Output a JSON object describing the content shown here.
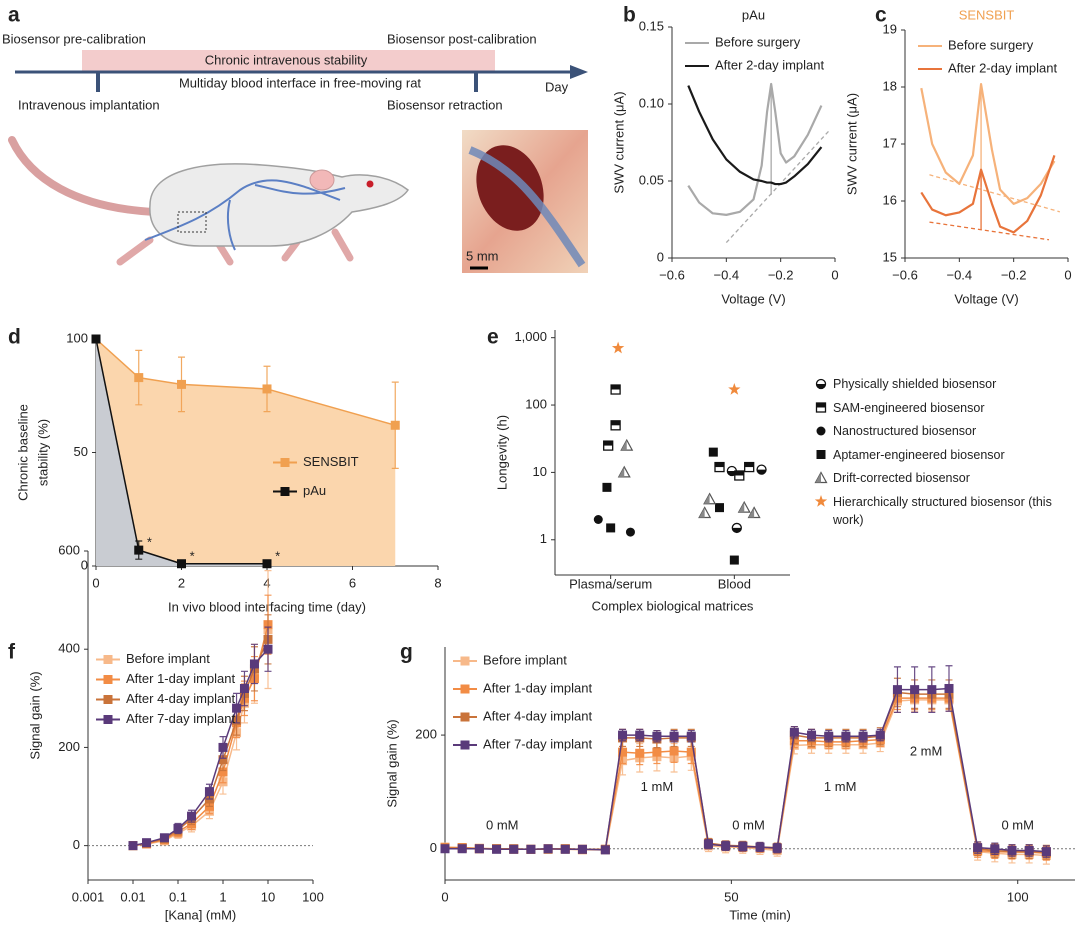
{
  "panel_a": {
    "label": "a",
    "timeline": {
      "start_label": "Biosensor pre-calibration",
      "band_label": "Chronic intravenous stability",
      "end_label": "Biosensor post-calibration",
      "caption": "Multiday blood interface in free-moving rat",
      "axis_label": "Day",
      "implant_label": "Intravenous implantation",
      "retraction_label": "Biosensor retraction"
    },
    "scale_bar": "5 mm"
  },
  "chart_data": [
    {
      "type": "line",
      "panel": "b",
      "title": "pAu",
      "title_color": "#222222",
      "xlabel": "Voltage (V)",
      "ylabel": "SWV current (μA)",
      "xlim": [
        -0.6,
        0
      ],
      "xticks": [
        {
          "value": -0.6,
          "label": "−0.6"
        },
        {
          "value": -0.4,
          "label": "−0.4"
        },
        {
          "value": -0.2,
          "label": "−0.2"
        },
        0
      ],
      "ylim": [
        0,
        0.15
      ],
      "yticks": [
        0,
        0.05,
        {
          "value": 0.1,
          "label": "0.10"
        },
        0.15
      ],
      "legend": "upper right",
      "x": [
        -0.54,
        -0.5,
        -0.45,
        -0.4,
        -0.35,
        -0.3,
        -0.27,
        -0.25,
        -0.235,
        -0.22,
        -0.2,
        -0.18,
        -0.15,
        -0.1,
        -0.05
      ],
      "series": [
        {
          "name": "Before surgery",
          "color": "#a9a9a9",
          "values": [
            0.047,
            0.036,
            0.029,
            0.028,
            0.03,
            0.038,
            0.06,
            0.095,
            0.113,
            0.095,
            0.068,
            0.062,
            0.066,
            0.08,
            0.099
          ]
        },
        {
          "name": "After 2-day implant",
          "color": "#1a1a1a",
          "values": [
            0.112,
            0.095,
            0.077,
            0.064,
            0.056,
            0.051,
            0.05,
            0.049,
            0.049,
            0.048,
            0.048,
            0.049,
            0.053,
            0.061,
            0.072
          ]
        }
      ],
      "reference_lines": [
        {
          "x": [
            -0.4,
            -0.02
          ],
          "values": [
            0.01,
            0.083
          ],
          "color": "#a9a9a9",
          "dashed": true
        },
        {
          "x": [
            -0.235,
            -0.235
          ],
          "values": [
            0.113,
            0.041
          ],
          "color": "#a9a9a9",
          "dashed": false
        }
      ]
    },
    {
      "type": "line",
      "panel": "c",
      "title": "SENSBIT",
      "title_color": "#f0a050",
      "xlabel": "Voltage (V)",
      "ylabel": "SWV current (μA)",
      "xlim": [
        -0.6,
        0
      ],
      "xticks": [
        {
          "value": -0.6,
          "label": "−0.6"
        },
        {
          "value": -0.4,
          "label": "−0.4"
        },
        {
          "value": -0.2,
          "label": "−0.2"
        },
        0
      ],
      "ylim": [
        15,
        19
      ],
      "yticks": [
        15,
        16,
        17,
        18,
        19
      ],
      "legend": "upper right",
      "x": [
        -0.54,
        -0.5,
        -0.45,
        -0.4,
        -0.35,
        -0.32,
        -0.28,
        -0.25,
        -0.2,
        -0.15,
        -0.1,
        -0.05
      ],
      "series": [
        {
          "name": "Before surgery",
          "color": "#f6b27a",
          "values": [
            17.98,
            17.0,
            16.5,
            16.3,
            16.8,
            18.05,
            16.9,
            16.2,
            15.95,
            16.05,
            16.3,
            16.7
          ]
        },
        {
          "name": "After 2-day implant",
          "color": "#e8743b",
          "values": [
            16.15,
            15.85,
            15.75,
            15.8,
            15.95,
            16.55,
            15.95,
            15.55,
            15.45,
            15.65,
            16.1,
            16.8
          ]
        }
      ],
      "reference_lines": [
        {
          "x": [
            -0.51,
            -0.03
          ],
          "values": [
            16.46,
            15.81
          ],
          "color": "#f6b27a",
          "dashed": true
        },
        {
          "x": [
            -0.51,
            -0.07
          ],
          "values": [
            15.63,
            15.32
          ],
          "color": "#e8743b",
          "dashed": true
        },
        {
          "x": [
            -0.32,
            -0.32
          ],
          "values": [
            18.0,
            16.25
          ],
          "color": "#f6b27a",
          "dashed": false
        },
        {
          "x": [
            -0.32,
            -0.32
          ],
          "values": [
            16.5,
            15.5
          ],
          "color": "#e8743b",
          "dashed": false
        }
      ]
    },
    {
      "type": "area",
      "panel": "d",
      "xlabel": "In vivo blood interfacing time (day)",
      "ylabel": [
        "Chronic baseline",
        "stability (%)"
      ],
      "xlim": [
        0,
        8
      ],
      "xticks": [
        0,
        2,
        4,
        6,
        8
      ],
      "ylim": [
        0,
        100
      ],
      "yticks": [
        0,
        50,
        100
      ],
      "legend": "center right",
      "marker": "square",
      "series": [
        {
          "name": "SENSBIT",
          "color": "#f0a050",
          "fill": "#fbd6ad",
          "x": [
            0,
            1,
            2,
            4,
            7
          ],
          "values": [
            100,
            83,
            80,
            78,
            62
          ],
          "errors": [
            0,
            12,
            12,
            10,
            19
          ]
        },
        {
          "name": "pAu",
          "color": "#111111",
          "fill": "#c9ccd2",
          "x": [
            0,
            1,
            2,
            4
          ],
          "values": [
            100,
            7,
            1,
            1
          ],
          "errors": [
            0,
            4,
            0,
            0
          ]
        }
      ],
      "annotations": [
        {
          "text": "*",
          "x": 1.25,
          "y": 10
        },
        {
          "text": "*",
          "x": 2.25,
          "y": 4
        },
        {
          "text": "*",
          "x": 4.25,
          "y": 4
        }
      ]
    },
    {
      "type": "scatter",
      "panel": "e",
      "xlabel": "Complex biological matrices",
      "ylabel": "Longevity (h)",
      "yscale": "log",
      "xlim": [
        -0.45,
        1.45
      ],
      "xticks": [
        {
          "value": 0,
          "label": "Plasma/serum"
        },
        {
          "value": 1,
          "label": "Blood"
        }
      ],
      "ylim": [
        0.3,
        1300
      ],
      "yticks": [
        1,
        10,
        100,
        {
          "value": 1000,
          "label": "1,000"
        }
      ],
      "legend": "outside right",
      "series": [
        {
          "name": "Physically shielded biosensor",
          "marker": "half-circle",
          "color": "#111111",
          "x": [
            0.98,
            1.02,
            1.22
          ],
          "values": [
            10.5,
            1.5,
            11
          ]
        },
        {
          "name": "SAM-engineered biosensor",
          "marker": "half-square",
          "color": "#111111",
          "x": [
            0.04,
            0.04,
            -0.02,
            0.88,
            1.12,
            1.04
          ],
          "values": [
            170,
            50,
            25,
            12,
            12,
            9
          ]
        },
        {
          "name": "Nanostructured biosensor",
          "marker": "circle",
          "color": "#111111",
          "x": [
            -0.1,
            0.16
          ],
          "values": [
            2,
            1.3
          ]
        },
        {
          "name": "Aptamer-engineered biosensor",
          "marker": "square",
          "color": "#111111",
          "x": [
            -0.03,
            0,
            0.83,
            0.88,
            1.0
          ],
          "values": [
            6,
            1.5,
            20,
            3,
            0.5
          ]
        },
        {
          "name": "Drift-corrected biosensor",
          "marker": "triangle",
          "color": "#888888",
          "x": [
            0.13,
            0.11,
            0.8,
            0.76,
            1.08,
            1.16
          ],
          "values": [
            25,
            10,
            4,
            2.5,
            3,
            2.5
          ]
        },
        {
          "name": "Hierarchically structured biosensor (this work)",
          "marker": "star",
          "color": "#f08a3c",
          "x": [
            0.06,
            1.0
          ],
          "values": [
            700,
            170
          ]
        }
      ]
    },
    {
      "type": "line",
      "panel": "f",
      "xlabel": "[Kana] (mM)",
      "ylabel": "Signal gain (%)",
      "xscale": "log",
      "xlim": [
        0.001,
        100
      ],
      "xticks": [
        0.001,
        0.01,
        0.1,
        1,
        10,
        100
      ],
      "ylim": [
        -70,
        600
      ],
      "yticks": [
        0,
        200,
        400,
        600
      ],
      "legend": "center left",
      "marker": "square",
      "zero_line": true,
      "x": [
        0.01,
        0.02,
        0.05,
        0.1,
        0.2,
        0.5,
        1,
        2,
        3,
        5,
        10
      ],
      "series": [
        {
          "name": "Before implant",
          "color": "#f7b98a",
          "values": [
            0,
            3,
            10,
            25,
            40,
            70,
            130,
            230,
            290,
            350,
            440
          ],
          "errors": [
            5,
            5,
            8,
            10,
            12,
            15,
            25,
            35,
            40,
            60,
            120
          ]
        },
        {
          "name": "After 1-day implant",
          "color": "#f28c45",
          "values": [
            0,
            4,
            12,
            28,
            45,
            80,
            150,
            250,
            300,
            340,
            450
          ],
          "errors": [
            4,
            5,
            7,
            10,
            12,
            15,
            22,
            30,
            35,
            45,
            60
          ]
        },
        {
          "name": "After 4-day implant",
          "color": "#c9733a",
          "values": [
            0,
            5,
            14,
            32,
            55,
            95,
            175,
            255,
            310,
            360,
            420
          ],
          "errors": [
            4,
            5,
            7,
            10,
            12,
            15,
            22,
            30,
            35,
            45,
            50
          ]
        },
        {
          "name": "After 7-day implant",
          "color": "#5a3a7a",
          "values": [
            0,
            6,
            16,
            35,
            60,
            110,
            200,
            280,
            320,
            370,
            400
          ],
          "errors": [
            4,
            5,
            7,
            10,
            12,
            15,
            22,
            30,
            35,
            40,
            45
          ]
        }
      ]
    },
    {
      "type": "line",
      "panel": "g",
      "xlabel": "Time (min)",
      "ylabel": "Signal gain (%)",
      "xlim": [
        0,
        110
      ],
      "xticks": [
        0,
        50,
        100
      ],
      "ylim": [
        -55,
        355
      ],
      "yticks": [
        0,
        200
      ],
      "legend": "upper left",
      "marker": "square",
      "zero_line": true,
      "x": [
        0,
        3,
        6,
        9,
        12,
        15,
        18,
        21,
        24,
        28,
        31,
        34,
        37,
        40,
        43,
        46,
        49,
        52,
        55,
        58,
        61,
        64,
        67,
        70,
        73,
        76,
        79,
        82,
        85,
        88,
        93,
        96,
        99,
        102,
        105
      ],
      "series": [
        {
          "name": "Before implant",
          "color": "#f7b98a",
          "values": [
            3,
            2,
            1,
            0,
            0,
            -1,
            0,
            -1,
            -2,
            -2,
            155,
            160,
            162,
            160,
            163,
            5,
            3,
            2,
            0,
            -3,
            182,
            183,
            183,
            183,
            183,
            186,
            260,
            262,
            262,
            262,
            -5,
            -8,
            -10,
            -10,
            -12
          ],
          "errors": [
            5,
            5,
            5,
            5,
            5,
            5,
            5,
            5,
            5,
            5,
            25,
            25,
            25,
            25,
            25,
            10,
            10,
            10,
            10,
            10,
            15,
            15,
            15,
            15,
            15,
            15,
            20,
            20,
            20,
            20,
            15,
            15,
            15,
            15,
            15
          ]
        },
        {
          "name": "After 1-day implant",
          "color": "#f28c45",
          "values": [
            2,
            2,
            0,
            0,
            -1,
            -1,
            0,
            0,
            -1,
            -1,
            170,
            168,
            170,
            172,
            170,
            8,
            5,
            3,
            2,
            0,
            190,
            190,
            188,
            188,
            190,
            192,
            265,
            265,
            265,
            265,
            -3,
            -5,
            -6,
            -6,
            -8
          ],
          "errors": [
            4,
            4,
            4,
            4,
            4,
            4,
            4,
            4,
            4,
            4,
            20,
            20,
            20,
            20,
            20,
            8,
            8,
            8,
            8,
            8,
            12,
            12,
            12,
            12,
            12,
            12,
            20,
            20,
            20,
            20,
            12,
            12,
            12,
            12,
            12
          ]
        },
        {
          "name": "After 4-day implant",
          "color": "#c9733a",
          "values": [
            1,
            1,
            0,
            0,
            0,
            -1,
            -1,
            0,
            -1,
            -1,
            195,
            195,
            193,
            195,
            195,
            10,
            6,
            5,
            3,
            2,
            200,
            195,
            195,
            195,
            195,
            198,
            275,
            272,
            272,
            272,
            0,
            -3,
            -5,
            -5,
            -6
          ],
          "errors": [
            3,
            3,
            3,
            3,
            3,
            3,
            3,
            3,
            3,
            3,
            15,
            15,
            15,
            15,
            15,
            8,
            8,
            8,
            8,
            8,
            15,
            15,
            15,
            15,
            15,
            15,
            25,
            25,
            25,
            25,
            12,
            12,
            12,
            12,
            12
          ]
        },
        {
          "name": "After 7-day implant",
          "color": "#5a3a7a",
          "values": [
            0,
            0,
            0,
            -1,
            -1,
            -1,
            0,
            -1,
            -1,
            -2,
            200,
            200,
            198,
            198,
            198,
            8,
            5,
            4,
            3,
            1,
            205,
            200,
            198,
            198,
            198,
            200,
            280,
            280,
            280,
            282,
            2,
            0,
            -3,
            -3,
            -5
          ],
          "errors": [
            3,
            3,
            3,
            3,
            3,
            3,
            3,
            3,
            3,
            3,
            10,
            10,
            10,
            10,
            10,
            8,
            8,
            8,
            8,
            8,
            10,
            10,
            10,
            10,
            10,
            10,
            40,
            40,
            40,
            40,
            10,
            10,
            10,
            10,
            10
          ]
        }
      ],
      "annotations": [
        {
          "text": "0 mM",
          "x": 10,
          "y": 40
        },
        {
          "text": "1 mM",
          "x": 37,
          "y": 108
        },
        {
          "text": "0 mM",
          "x": 53,
          "y": 40
        },
        {
          "text": "1 mM",
          "x": 69,
          "y": 108
        },
        {
          "text": "2 mM",
          "x": 84,
          "y": 170
        },
        {
          "text": "0 mM",
          "x": 100,
          "y": 40
        }
      ]
    }
  ]
}
